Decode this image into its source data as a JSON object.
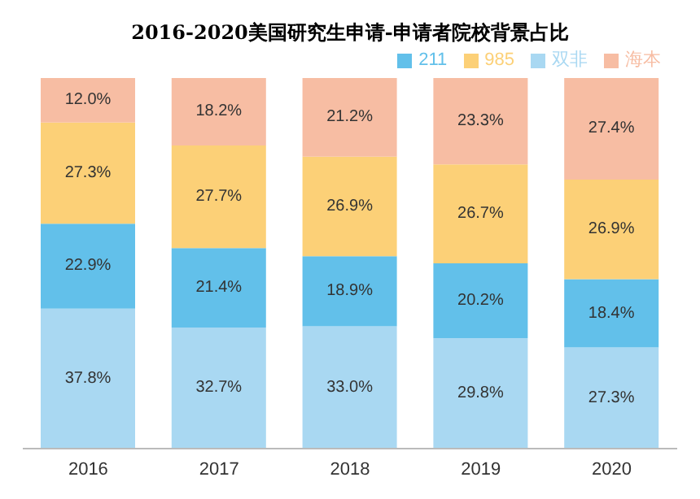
{
  "chart_data": {
    "type": "bar",
    "title": "2016-2020美国研究生申请-申请者院校背景占比",
    "categories": [
      "2016",
      "2017",
      "2018",
      "2019",
      "2020"
    ],
    "stacked": true,
    "legend": "top right",
    "grid": false,
    "series": [
      {
        "name": "双非",
        "color": "#a9d8f2",
        "values": [
          37.8,
          32.7,
          33.0,
          29.8,
          27.3
        ],
        "value_labels": [
          "37.8%",
          "32.7%",
          "33.0%",
          "29.8%",
          "27.3%"
        ]
      },
      {
        "name": "211",
        "color": "#62c0ea",
        "values": [
          22.9,
          21.4,
          18.9,
          20.2,
          18.4
        ],
        "value_labels": [
          "22.9%",
          "21.4%",
          "18.9%",
          "20.2%",
          "18.4%"
        ]
      },
      {
        "name": "985",
        "color": "#fcd077",
        "values": [
          27.3,
          27.7,
          26.9,
          26.7,
          26.9
        ],
        "value_labels": [
          "27.3%",
          "27.7%",
          "26.9%",
          "26.7%",
          "26.9%"
        ]
      },
      {
        "name": "海本",
        "color": "#f7bda3",
        "values": [
          12.0,
          18.2,
          21.2,
          23.3,
          27.4
        ],
        "value_labels": [
          "12.0%",
          "18.2%",
          "21.2%",
          "23.3%",
          "27.4%"
        ]
      }
    ]
  }
}
